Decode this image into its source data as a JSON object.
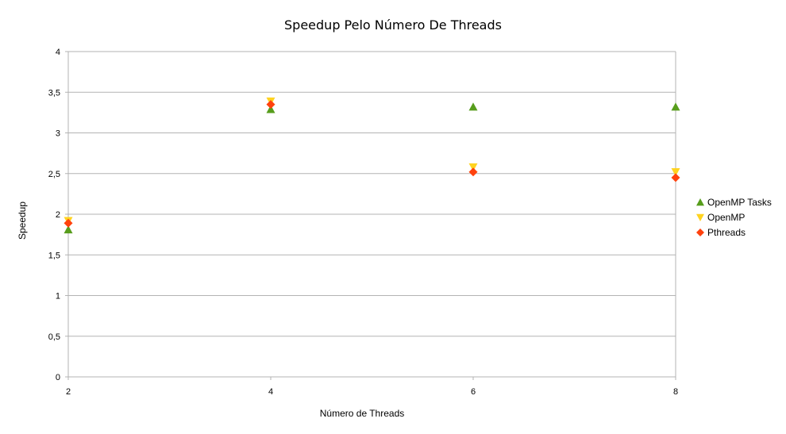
{
  "chart_data": {
    "type": "scatter",
    "title": "Speedup Pelo Número De Threads",
    "xlabel": "Número de Threads",
    "ylabel": "Speedup",
    "x": [
      2,
      4,
      6,
      8
    ],
    "xlim": [
      2,
      8
    ],
    "ylim": [
      0,
      4
    ],
    "xticks": [
      "2",
      "4",
      "6",
      "8"
    ],
    "yticks": [
      "0",
      "0,5",
      "1",
      "1,5",
      "2",
      "2,5",
      "3",
      "3,5",
      "4"
    ],
    "grid": "horizontal",
    "legend_position": "right",
    "series": [
      {
        "name": "OpenMP Tasks",
        "marker": "triangle-up",
        "color": "#579d1c",
        "values": [
          1.81,
          3.29,
          3.32,
          3.32
        ]
      },
      {
        "name": "OpenMP",
        "marker": "triangle-down",
        "color": "#ffd320",
        "values": [
          1.92,
          3.39,
          2.58,
          2.52
        ]
      },
      {
        "name": "Pthreads",
        "marker": "diamond",
        "color": "#ff420e",
        "values": [
          1.89,
          3.35,
          2.52,
          2.45
        ]
      }
    ]
  }
}
